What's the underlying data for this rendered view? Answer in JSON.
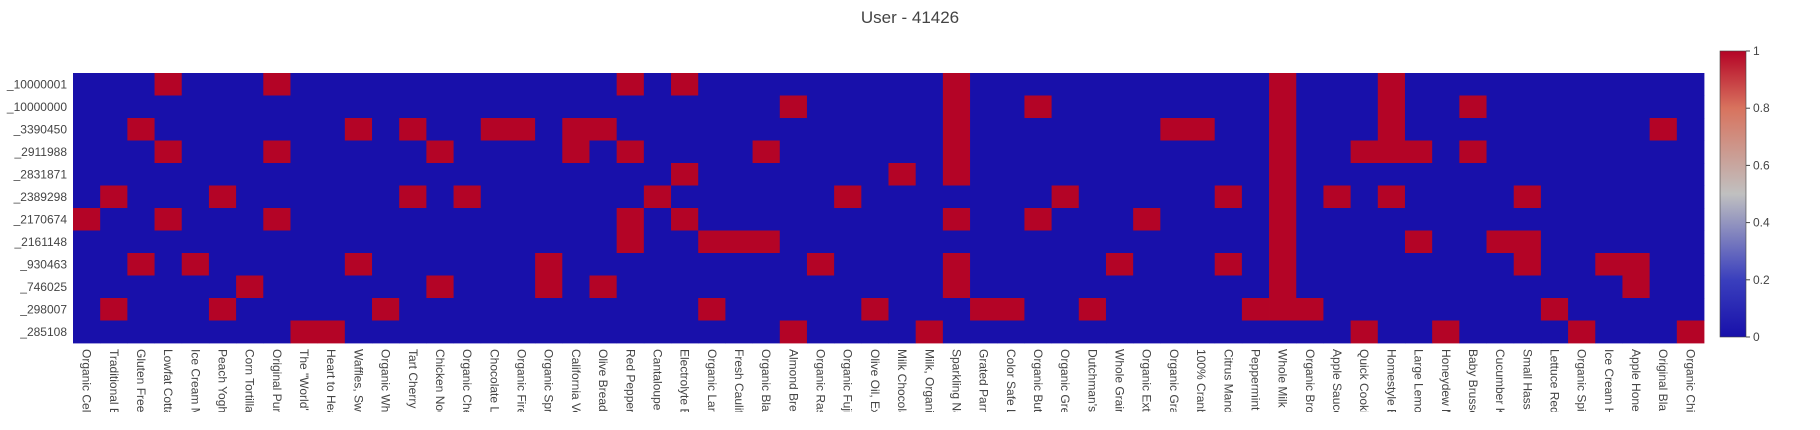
{
  "chart_data": {
    "type": "heatmap",
    "title": "User - 41426",
    "xlabel": "",
    "ylabel": "",
    "x": [
      "Organic Cel",
      "Traditional B",
      "Gluten Free",
      "Lowfat Cotta",
      "Ice Cream M",
      "Peach Yogh",
      "Corn Tortilla",
      "Original Pur",
      "The \"World'",
      "Heart to Hea",
      "Waffles, Swe",
      "Organic Wh",
      "Tart Cherry '",
      "Chicken Noo",
      "Organic Che",
      "Chocolate L",
      "Organic Fire",
      "Organic Spr",
      "California Ve",
      "Olive Bread",
      "Red Pepper",
      "Cantaloupe",
      "Electrolyte E",
      "Organic Larg",
      "Fresh Caulifl",
      "Organic Bla",
      "Almond Bree",
      "Organic Ras",
      "Organic Fuji",
      "Olive Oil, Ex",
      "Milk Chocola",
      "Milk, Organi",
      "Sparkling Na",
      "Grated Parm",
      "Color Safe L",
      "Organic Butt",
      "Organic Gre",
      "Dutchman's",
      "Whole Grain",
      "Organic Extr",
      "Organic Gra",
      "100% Cranb",
      "Citrus Mand",
      "Peppermint",
      "Whole Milk",
      "Organic Bro",
      "Apple Sauce",
      "Quick Cooki",
      "Homestyle E",
      "Large Lemo",
      "Honeydew M",
      "Baby Brusse",
      "Cucumber K",
      "Small Hass",
      "Lettuce Red",
      "Organic Spi",
      "Ice Cream H",
      "Apple Honey",
      "Original Bla",
      "Organic Chi"
    ],
    "y": [
      "_10000001",
      "_10000000",
      "_3390450",
      "_2911988",
      "_2831871",
      "_2389298",
      "_2170674",
      "_2161148",
      "_930463",
      "_746025",
      "_298007",
      "_285108"
    ],
    "z": [
      [
        0,
        0,
        0,
        1,
        0,
        0,
        0,
        1,
        0,
        0,
        0,
        0,
        0,
        0,
        0,
        0,
        0,
        0,
        0,
        0,
        1,
        0,
        1,
        0,
        0,
        0,
        0,
        0,
        0,
        0,
        0,
        0,
        1,
        0,
        0,
        0,
        0,
        0,
        0,
        0,
        0,
        0,
        0,
        0,
        1,
        0,
        0,
        0,
        1,
        0,
        0,
        0,
        0,
        0,
        0,
        0,
        0,
        0,
        0,
        0
      ],
      [
        0,
        0,
        0,
        0,
        0,
        0,
        0,
        0,
        0,
        0,
        0,
        0,
        0,
        0,
        0,
        0,
        0,
        0,
        0,
        0,
        0,
        0,
        0,
        0,
        0,
        0,
        1,
        0,
        0,
        0,
        0,
        0,
        1,
        0,
        0,
        1,
        0,
        0,
        0,
        0,
        0,
        0,
        0,
        0,
        1,
        0,
        0,
        0,
        1,
        0,
        0,
        1,
        0,
        0,
        0,
        0,
        0,
        0,
        0,
        0
      ],
      [
        0,
        0,
        1,
        0,
        0,
        0,
        0,
        0,
        0,
        0,
        1,
        0,
        1,
        0,
        0,
        1,
        1,
        0,
        1,
        1,
        0,
        0,
        0,
        0,
        0,
        0,
        0,
        0,
        0,
        0,
        0,
        0,
        1,
        0,
        0,
        0,
        0,
        0,
        0,
        0,
        1,
        1,
        0,
        0,
        1,
        0,
        0,
        0,
        1,
        0,
        0,
        0,
        0,
        0,
        0,
        0,
        0,
        0,
        1,
        0
      ],
      [
        0,
        0,
        0,
        1,
        0,
        0,
        0,
        1,
        0,
        0,
        0,
        0,
        0,
        1,
        0,
        0,
        0,
        0,
        1,
        0,
        1,
        0,
        0,
        0,
        0,
        1,
        0,
        0,
        0,
        0,
        0,
        0,
        1,
        0,
        0,
        0,
        0,
        0,
        0,
        0,
        0,
        0,
        0,
        0,
        1,
        0,
        0,
        1,
        1,
        1,
        0,
        1,
        0,
        0,
        0,
        0,
        0,
        0,
        0,
        0
      ],
      [
        0,
        0,
        0,
        0,
        0,
        0,
        0,
        0,
        0,
        0,
        0,
        0,
        0,
        0,
        0,
        0,
        0,
        0,
        0,
        0,
        0,
        0,
        1,
        0,
        0,
        0,
        0,
        0,
        0,
        0,
        1,
        0,
        1,
        0,
        0,
        0,
        0,
        0,
        0,
        0,
        0,
        0,
        0,
        0,
        1,
        0,
        0,
        0,
        0,
        0,
        0,
        0,
        0,
        0,
        0,
        0,
        0,
        0,
        0,
        0
      ],
      [
        0,
        1,
        0,
        0,
        0,
        1,
        0,
        0,
        0,
        0,
        0,
        0,
        1,
        0,
        1,
        0,
        0,
        0,
        0,
        0,
        0,
        1,
        0,
        0,
        0,
        0,
        0,
        0,
        1,
        0,
        0,
        0,
        0,
        0,
        0,
        0,
        1,
        0,
        0,
        0,
        0,
        0,
        1,
        0,
        1,
        0,
        1,
        0,
        1,
        0,
        0,
        0,
        0,
        1,
        0,
        0,
        0,
        0,
        0,
        0
      ],
      [
        1,
        0,
        0,
        1,
        0,
        0,
        0,
        1,
        0,
        0,
        0,
        0,
        0,
        0,
        0,
        0,
        0,
        0,
        0,
        0,
        1,
        0,
        1,
        0,
        0,
        0,
        0,
        0,
        0,
        0,
        0,
        0,
        1,
        0,
        0,
        1,
        0,
        0,
        0,
        1,
        0,
        0,
        0,
        0,
        1,
        0,
        0,
        0,
        0,
        0,
        0,
        0,
        0,
        0,
        0,
        0,
        0,
        0,
        0,
        0
      ],
      [
        0,
        0,
        0,
        0,
        0,
        0,
        0,
        0,
        0,
        0,
        0,
        0,
        0,
        0,
        0,
        0,
        0,
        0,
        0,
        0,
        1,
        0,
        0,
        1,
        1,
        1,
        0,
        0,
        0,
        0,
        0,
        0,
        0,
        0,
        0,
        0,
        0,
        0,
        0,
        0,
        0,
        0,
        0,
        0,
        1,
        0,
        0,
        0,
        0,
        1,
        0,
        0,
        1,
        1,
        0,
        0,
        0,
        0,
        0,
        0
      ],
      [
        0,
        0,
        1,
        0,
        1,
        0,
        0,
        0,
        0,
        0,
        1,
        0,
        0,
        0,
        0,
        0,
        0,
        1,
        0,
        0,
        0,
        0,
        0,
        0,
        0,
        0,
        0,
        1,
        0,
        0,
        0,
        0,
        1,
        0,
        0,
        0,
        0,
        0,
        1,
        0,
        0,
        0,
        1,
        0,
        1,
        0,
        0,
        0,
        0,
        0,
        0,
        0,
        0,
        1,
        0,
        0,
        1,
        1,
        0,
        0
      ],
      [
        0,
        0,
        0,
        0,
        0,
        0,
        1,
        0,
        0,
        0,
        0,
        0,
        0,
        1,
        0,
        0,
        0,
        1,
        0,
        1,
        0,
        0,
        0,
        0,
        0,
        0,
        0,
        0,
        0,
        0,
        0,
        0,
        1,
        0,
        0,
        0,
        0,
        0,
        0,
        0,
        0,
        0,
        0,
        0,
        1,
        0,
        0,
        0,
        0,
        0,
        0,
        0,
        0,
        0,
        0,
        0,
        0,
        1,
        0,
        0
      ],
      [
        0,
        1,
        0,
        0,
        0,
        1,
        0,
        0,
        0,
        0,
        0,
        1,
        0,
        0,
        0,
        0,
        0,
        0,
        0,
        0,
        0,
        0,
        0,
        1,
        0,
        0,
        0,
        0,
        0,
        1,
        0,
        0,
        0,
        1,
        1,
        0,
        0,
        1,
        0,
        0,
        0,
        0,
        0,
        1,
        1,
        1,
        0,
        0,
        0,
        0,
        0,
        0,
        0,
        0,
        1,
        0,
        0,
        0,
        0,
        0
      ],
      [
        0,
        0,
        0,
        0,
        0,
        0,
        0,
        0,
        1,
        1,
        0,
        0,
        0,
        0,
        0,
        0,
        0,
        0,
        0,
        0,
        0,
        0,
        0,
        0,
        0,
        0,
        1,
        0,
        0,
        0,
        0,
        1,
        0,
        0,
        0,
        0,
        0,
        0,
        0,
        0,
        0,
        0,
        0,
        0,
        0,
        0,
        0,
        1,
        0,
        0,
        1,
        0,
        0,
        0,
        0,
        1,
        0,
        0,
        0,
        1
      ]
    ],
    "zmin": 0,
    "zmax": 1,
    "colorscale": [
      [
        0,
        "#1810aa"
      ],
      [
        0.2,
        "#3a3fbd"
      ],
      [
        0.5,
        "#c0c0c0"
      ],
      [
        0.8,
        "#d8735e"
      ],
      [
        1,
        "#b40426"
      ]
    ],
    "colorbar": {
      "ticks": [
        "0",
        "0.2",
        "0.4",
        "0.6",
        "0.8",
        "1"
      ],
      "tickvals": [
        0,
        0.2,
        0.4,
        0.6,
        0.8,
        1
      ]
    }
  }
}
